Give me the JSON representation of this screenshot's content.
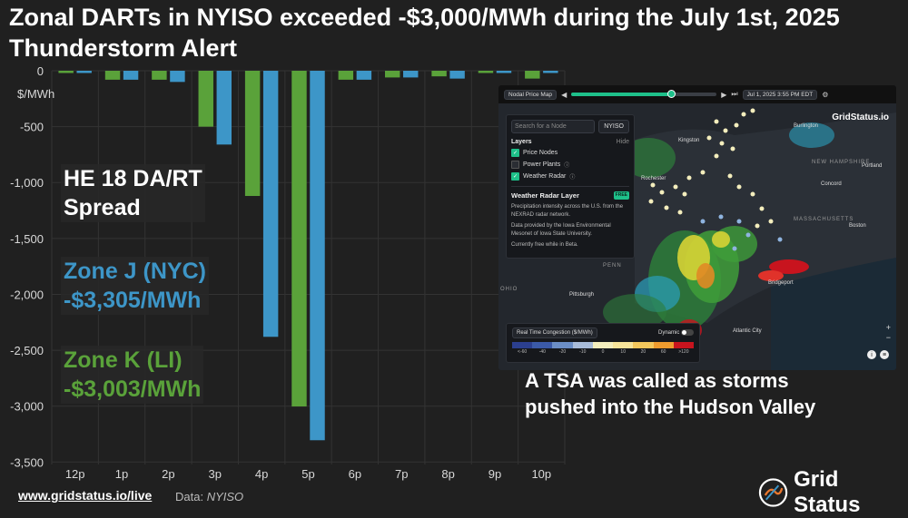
{
  "title": "Zonal DARTs in NYISO exceeded -$3,000/MWh during the July 1st, 2025 Thunderstorm Alert",
  "callouts": {
    "spread_line1": "HE 18 DA/RT",
    "spread_line2": "Spread",
    "zone_j_line1": "Zone J (NYC)",
    "zone_j_line2": "-$3,305/MWh",
    "zone_k_line1": "Zone K (LI)",
    "zone_k_line2": "-$3,003/MWh"
  },
  "footer": {
    "link": "www.gridstatus.io/live",
    "source_label": "Data:",
    "source_name": "NYISO",
    "brand": "Grid Status"
  },
  "colors": {
    "zone_j": "#3d96c8",
    "zone_k": "#5aa23a",
    "background": "#202020",
    "grid": "#333333"
  },
  "chart_data": {
    "type": "bar",
    "title": "Zonal DARTs in NYISO exceeded -$3,000/MWh during the July 1st, 2025 Thunderstorm Alert",
    "ylabel": "$/MWh",
    "xlabel": "",
    "categories": [
      "12p",
      "1p",
      "2p",
      "3p",
      "4p",
      "5p",
      "6p",
      "7p",
      "8p",
      "9p",
      "10p"
    ],
    "ylim": [
      -3600,
      0
    ],
    "yticks": [
      0,
      -500,
      -1000,
      -1500,
      -2000,
      -2500,
      -3000,
      -3500
    ],
    "ytick_labels": [
      "0",
      "-500",
      "-1,000",
      "-1,500",
      "-2,000",
      "-2,500",
      "-3,000",
      "-3,500"
    ],
    "series": [
      {
        "name": "Zone K (LI)",
        "color": "#5aa23a",
        "values": [
          -20,
          -80,
          -80,
          -500,
          -1120,
          -3003,
          -80,
          -60,
          -50,
          -20,
          -70
        ]
      },
      {
        "name": "Zone J (NYC)",
        "color": "#3d96c8",
        "values": [
          -20,
          -80,
          -100,
          -660,
          -2380,
          -3305,
          -80,
          -60,
          -70,
          -20,
          -20
        ]
      }
    ]
  },
  "map": {
    "toolbar": {
      "view_label": "Nodal Price Map",
      "date": "Jul 1, 2025 3:55 PM EDT",
      "logo": "GridStatus.io"
    },
    "search_placeholder": "Search for a Node",
    "iso": "NYISO",
    "layers_title": "Layers",
    "hide_label": "Hide",
    "layers": [
      "Price Nodes",
      "Power Plants",
      "Weather Radar"
    ],
    "radar_card": {
      "title": "Weather Radar Layer",
      "badge": "FREE",
      "p1": "Precipitation intensity across the U.S. from the NEXRAD radar network.",
      "p2": "Data provided by the Iowa Environmental Mesonet of Iowa State University.",
      "p3": "Currently free while in Beta."
    },
    "legend": {
      "selector": "Real Time Congestion ($/MWh)",
      "dynamic_label": "Dynamic",
      "ticks": [
        "<-60",
        "-40",
        "-20",
        "-10",
        "0",
        "10",
        "20",
        "60",
        ">120"
      ],
      "colors": [
        "#2b3f8f",
        "#3b5aa8",
        "#6b8ec6",
        "#a9bcd9",
        "#f4eebd",
        "#f7e49a",
        "#f3c75c",
        "#ee9b2e",
        "#c8141e"
      ]
    },
    "places": {
      "burlington": "Burlington",
      "kingston": "Kingston",
      "new_hampshire": "NEW HAMPSHIRE",
      "portland": "Portland",
      "concord": "Concord",
      "rochester": "Rochester",
      "massachusetts": "MASSACHUSETTS",
      "boston": "Boston",
      "bridgeport": "Bridgeport",
      "penn": "PENN",
      "ohio": "OHIO",
      "pittsburgh": "Pittsburgh",
      "atlantic_city": "Atlantic City"
    },
    "caption_line1": "A TSA was called as storms",
    "caption_line2": "pushed into the Hudson Valley"
  }
}
